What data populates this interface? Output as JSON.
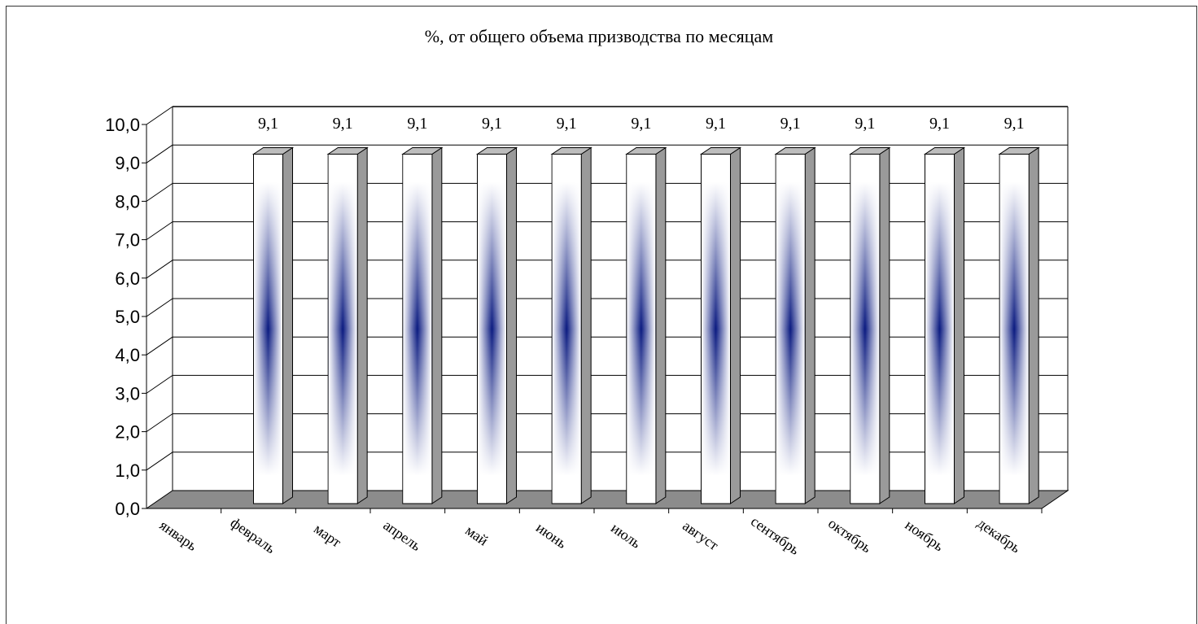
{
  "chart_data": {
    "type": "bar",
    "title": "%, от общего объема призводства по месяцам",
    "categories": [
      "январь",
      "февраль",
      "март",
      "апрель",
      "май",
      "июнь",
      "июль",
      "август",
      "сентябрь",
      "октябрь",
      "ноябрь",
      "декабрь"
    ],
    "values": [
      0,
      9.1,
      9.1,
      9.1,
      9.1,
      9.1,
      9.1,
      9.1,
      9.1,
      9.1,
      9.1,
      9.1
    ],
    "data_labels": [
      "",
      "9,1",
      "9,1",
      "9,1",
      "9,1",
      "9,1",
      "9,1",
      "9,1",
      "9,1",
      "9,1",
      "9,1",
      "9,1"
    ],
    "y_ticks": [
      "0,0",
      "1,0",
      "2,0",
      "3,0",
      "4,0",
      "5,0",
      "6,0",
      "7,0",
      "8,0",
      "9,0",
      "10,0"
    ],
    "ylim": [
      0,
      10
    ],
    "grid": true,
    "legend": "none",
    "style": "3d-column",
    "colors": {
      "bar_center": "#0a1a80",
      "bar_edge": "#ffffff",
      "bar_side": "#9a9a9a",
      "floor": "#8c8c8c",
      "grid": "#000000"
    }
  }
}
